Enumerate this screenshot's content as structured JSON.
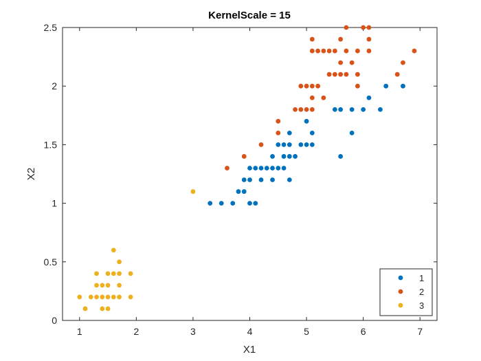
{
  "chart_data": {
    "type": "scatter",
    "title": "KernelScale = 15",
    "xlabel": "X1",
    "ylabel": "X2",
    "xlim": [
      0.7,
      7.3
    ],
    "ylim": [
      0,
      2.5
    ],
    "xticks": [
      1,
      2,
      3,
      4,
      5,
      6,
      7
    ],
    "yticks": [
      0,
      0.5,
      1,
      1.5,
      2,
      2.5
    ],
    "legend": "bottom-right",
    "grid": false,
    "series": [
      {
        "name": "1",
        "color": "#0072BD",
        "points": [
          [
            3.3,
            1.0
          ],
          [
            3.5,
            1.0
          ],
          [
            3.7,
            1.0
          ],
          [
            4.0,
            1.0
          ],
          [
            4.1,
            1.0
          ],
          [
            3.8,
            1.1
          ],
          [
            3.9,
            1.1
          ],
          [
            3.9,
            1.2
          ],
          [
            4.0,
            1.2
          ],
          [
            4.2,
            1.2
          ],
          [
            4.4,
            1.2
          ],
          [
            4.7,
            1.2
          ],
          [
            4.0,
            1.3
          ],
          [
            4.1,
            1.3
          ],
          [
            4.2,
            1.3
          ],
          [
            4.3,
            1.3
          ],
          [
            4.4,
            1.3
          ],
          [
            4.5,
            1.3
          ],
          [
            4.6,
            1.3
          ],
          [
            4.4,
            1.4
          ],
          [
            4.6,
            1.4
          ],
          [
            4.7,
            1.4
          ],
          [
            4.8,
            1.4
          ],
          [
            5.6,
            1.4
          ],
          [
            4.5,
            1.5
          ],
          [
            4.6,
            1.5
          ],
          [
            4.7,
            1.5
          ],
          [
            4.9,
            1.5
          ],
          [
            5.0,
            1.5
          ],
          [
            5.1,
            1.5
          ],
          [
            4.7,
            1.6
          ],
          [
            5.1,
            1.6
          ],
          [
            5.8,
            1.6
          ],
          [
            5.0,
            1.7
          ],
          [
            5.5,
            1.8
          ],
          [
            5.6,
            1.8
          ],
          [
            5.8,
            1.8
          ],
          [
            6.0,
            1.8
          ],
          [
            6.3,
            1.8
          ],
          [
            6.1,
            1.9
          ],
          [
            6.4,
            2.0
          ],
          [
            6.7,
            2.0
          ]
        ]
      },
      {
        "name": "2",
        "color": "#D95319",
        "points": [
          [
            3.6,
            1.3
          ],
          [
            3.9,
            1.4
          ],
          [
            4.2,
            1.5
          ],
          [
            4.5,
            1.6
          ],
          [
            4.5,
            1.7
          ],
          [
            4.8,
            1.8
          ],
          [
            4.9,
            1.8
          ],
          [
            5.0,
            1.8
          ],
          [
            5.1,
            1.8
          ],
          [
            5.1,
            1.9
          ],
          [
            5.3,
            1.9
          ],
          [
            4.9,
            2.0
          ],
          [
            5.0,
            2.0
          ],
          [
            5.1,
            2.0
          ],
          [
            5.2,
            2.0
          ],
          [
            5.4,
            2.1
          ],
          [
            5.5,
            2.1
          ],
          [
            5.6,
            2.1
          ],
          [
            5.7,
            2.1
          ],
          [
            5.9,
            2.1
          ],
          [
            6.6,
            2.1
          ],
          [
            5.6,
            2.2
          ],
          [
            5.8,
            2.2
          ],
          [
            6.7,
            2.2
          ],
          [
            5.1,
            2.3
          ],
          [
            5.2,
            2.3
          ],
          [
            5.3,
            2.3
          ],
          [
            5.4,
            2.3
          ],
          [
            5.5,
            2.3
          ],
          [
            5.7,
            2.3
          ],
          [
            5.9,
            2.3
          ],
          [
            6.1,
            2.3
          ],
          [
            6.9,
            2.3
          ],
          [
            5.1,
            2.4
          ],
          [
            5.6,
            2.4
          ],
          [
            6.1,
            2.4
          ],
          [
            5.7,
            2.5
          ],
          [
            6.0,
            2.5
          ],
          [
            6.1,
            2.5
          ],
          [
            5.9,
            2.0
          ]
        ]
      },
      {
        "name": "3",
        "color": "#EDB120",
        "points": [
          [
            1.1,
            0.1
          ],
          [
            1.4,
            0.1
          ],
          [
            1.5,
            0.1
          ],
          [
            1.0,
            0.2
          ],
          [
            1.2,
            0.2
          ],
          [
            1.3,
            0.2
          ],
          [
            1.4,
            0.2
          ],
          [
            1.5,
            0.2
          ],
          [
            1.6,
            0.2
          ],
          [
            1.7,
            0.2
          ],
          [
            1.9,
            0.2
          ],
          [
            1.3,
            0.3
          ],
          [
            1.4,
            0.3
          ],
          [
            1.5,
            0.3
          ],
          [
            1.7,
            0.3
          ],
          [
            1.3,
            0.4
          ],
          [
            1.5,
            0.4
          ],
          [
            1.6,
            0.4
          ],
          [
            1.7,
            0.4
          ],
          [
            1.9,
            0.4
          ],
          [
            1.7,
            0.5
          ],
          [
            1.6,
            0.6
          ],
          [
            3.0,
            1.1
          ]
        ]
      }
    ]
  }
}
